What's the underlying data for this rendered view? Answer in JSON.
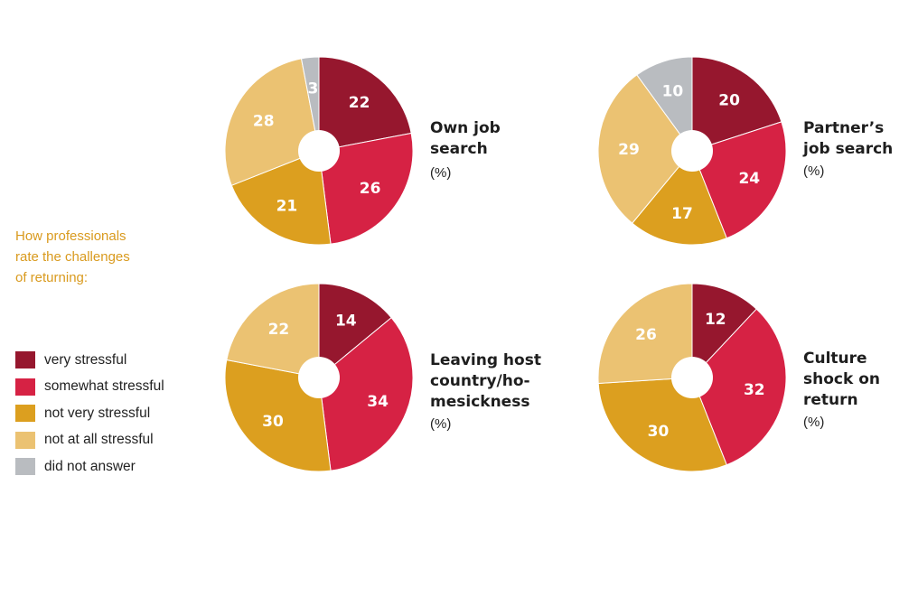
{
  "intro_lines": [
    "How professionals",
    "rate the challenges",
    "of returning:"
  ],
  "legend": [
    {
      "label": "very stressful",
      "color": "#96172e"
    },
    {
      "label": "somewhat stressful",
      "color": "#d62244"
    },
    {
      "label": "not very stressful",
      "color": "#dc9f1f"
    },
    {
      "label": "not at all stressful",
      "color": "#ebc272"
    },
    {
      "label": "did not answer",
      "color": "#b9bcc0"
    }
  ],
  "chart_data": [
    {
      "type": "pie",
      "title_lines": [
        "Own job",
        "search"
      ],
      "unit": "(%)",
      "categories": [
        "very stressful",
        "somewhat stressful",
        "not very stressful",
        "not at all stressful",
        "did not answer"
      ],
      "values": [
        22,
        26,
        21,
        28,
        3
      ]
    },
    {
      "type": "pie",
      "title_lines": [
        "Partner’s",
        "job search"
      ],
      "unit": "(%)",
      "categories": [
        "very stressful",
        "somewhat stressful",
        "not very stressful",
        "not at all stressful",
        "did not answer"
      ],
      "values": [
        20,
        24,
        17,
        29,
        10
      ]
    },
    {
      "type": "pie",
      "title_lines": [
        "Leaving host",
        "country/ho-",
        "mesickness"
      ],
      "unit": "(%)",
      "categories": [
        "very stressful",
        "somewhat stressful",
        "not very stressful",
        "not at all stressful"
      ],
      "values": [
        14,
        34,
        30,
        22
      ]
    },
    {
      "type": "pie",
      "title_lines": [
        "Culture",
        "shock on",
        "return"
      ],
      "unit": "(%)",
      "categories": [
        "very stressful",
        "somewhat stressful",
        "not very stressful",
        "not at all stressful"
      ],
      "values": [
        12,
        32,
        30,
        26
      ]
    }
  ]
}
